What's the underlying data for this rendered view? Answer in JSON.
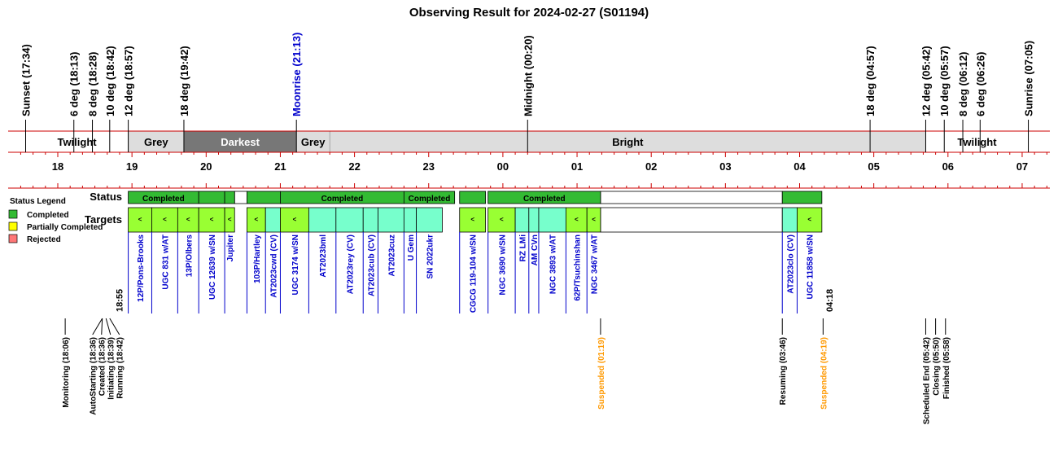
{
  "chart_data": {
    "type": "timeline",
    "title": "Observing Result for 2024-02-27 (S01194)",
    "colors": {
      "completed": "#33bb33",
      "partial": "#ffff00",
      "rejected": "#ff7777",
      "target_fill": "#99ff33",
      "target_fill_cv": "#77ffcc",
      "link": "#0000cc",
      "warning": "#ff9900",
      "rule": "#cc0000",
      "darkest": "#777777",
      "grey": "#dddddd",
      "bright": "#dddddd",
      "twilight": "#ffffff"
    },
    "sky_events": [
      {
        "label": "Sunset (17:34)",
        "time": "17:34",
        "color": "black"
      },
      {
        "label": "6 deg (18:13)",
        "time": "18:13",
        "color": "black"
      },
      {
        "label": "8 deg (18:28)",
        "time": "18:28",
        "color": "black"
      },
      {
        "label": "10 deg (18:42)",
        "time": "18:42",
        "color": "black"
      },
      {
        "label": "12 deg (18:57)",
        "time": "18:57",
        "color": "black"
      },
      {
        "label": "18 deg (19:42)",
        "time": "19:42",
        "color": "black"
      },
      {
        "label": "Moonrise (21:13)",
        "time": "21:13",
        "color": "blue"
      },
      {
        "label": "Midnight (00:20)",
        "time": "00:20",
        "color": "black"
      },
      {
        "label": "18 deg (04:57)",
        "time": "04:57",
        "color": "black"
      },
      {
        "label": "12 deg (05:42)",
        "time": "05:42",
        "color": "black"
      },
      {
        "label": "10 deg (05:57)",
        "time": "05:57",
        "color": "black"
      },
      {
        "label": "8 deg (06:12)",
        "time": "06:12",
        "color": "black"
      },
      {
        "label": "6 deg (06:26)",
        "time": "06:26",
        "color": "black"
      },
      {
        "label": "Sunrise (07:05)",
        "time": "07:05",
        "color": "black"
      }
    ],
    "sky_bands": [
      {
        "label": "Twilight",
        "start": "17:34",
        "end": "18:57",
        "kind": "twilight"
      },
      {
        "label": "Grey",
        "start": "18:57",
        "end": "19:42",
        "kind": "grey"
      },
      {
        "label": "Darkest",
        "start": "19:42",
        "end": "21:13",
        "kind": "darkest"
      },
      {
        "label": "Grey",
        "start": "21:13",
        "end": "21:40",
        "kind": "grey"
      },
      {
        "label": "Bright",
        "start": "21:40",
        "end": "05:42",
        "kind": "bright"
      },
      {
        "label": "Twilight",
        "start": "05:42",
        "end": "07:05",
        "kind": "twilight"
      }
    ],
    "hour_ticks": [
      "18",
      "19",
      "20",
      "21",
      "22",
      "23",
      "00",
      "01",
      "02",
      "03",
      "04",
      "05",
      "06",
      "07"
    ],
    "row_labels": {
      "status": "Status",
      "targets": "Targets"
    },
    "legend": {
      "title": "Status Legend",
      "items": [
        {
          "label": "Completed",
          "key": "completed"
        },
        {
          "label": "Partially Completed",
          "key": "partial"
        },
        {
          "label": "Rejected",
          "key": "rejected"
        }
      ]
    },
    "status_blocks": [
      {
        "start": "18:57",
        "end": "19:54",
        "label": "Completed"
      },
      {
        "start": "19:54",
        "end": "20:15",
        "label": ""
      },
      {
        "start": "20:15",
        "end": "20:23",
        "label": ""
      },
      {
        "start": "20:33",
        "end": "21:00",
        "label": ""
      },
      {
        "start": "21:00",
        "end": "22:40",
        "label": "Completed"
      },
      {
        "start": "22:40",
        "end": "23:21",
        "label": "Completed"
      },
      {
        "start": "23:25",
        "end": "23:46",
        "label": ""
      },
      {
        "start": "23:48",
        "end": "01:19",
        "label": "Completed"
      },
      {
        "start": "03:46",
        "end": "04:18",
        "label": ""
      }
    ],
    "status_gaps": [
      {
        "start": "20:23",
        "end": "20:33"
      },
      {
        "start": "01:19",
        "end": "03:46"
      }
    ],
    "targets": [
      {
        "name": "12P/Pons-Brooks",
        "start": "18:57",
        "end": "19:16",
        "kind": "green",
        "marker": "<"
      },
      {
        "name": "UGC 831 w/AT",
        "start": "19:16",
        "end": "19:37",
        "kind": "green",
        "marker": "<"
      },
      {
        "name": "13P/Olbers",
        "start": "19:37",
        "end": "19:54",
        "kind": "green",
        "marker": "<"
      },
      {
        "name": "UGC 12639 w/SN",
        "start": "19:54",
        "end": "20:15",
        "kind": "green",
        "marker": "<"
      },
      {
        "name": "Jupiter",
        "start": "20:15",
        "end": "20:23",
        "kind": "green",
        "marker": "<"
      },
      {
        "name": "103P/Hartley",
        "start": "20:33",
        "end": "20:48",
        "kind": "green",
        "marker": "<"
      },
      {
        "name": "AT2023cwd (CV)",
        "start": "20:48",
        "end": "21:00",
        "kind": "cv",
        "marker": ""
      },
      {
        "name": "UGC 3174 w/SN",
        "start": "21:00",
        "end": "21:23",
        "kind": "green",
        "marker": "<"
      },
      {
        "name": "AT2023bml",
        "start": "21:23",
        "end": "21:45",
        "kind": "cv",
        "marker": ""
      },
      {
        "name": "AT2023rey (CV)",
        "start": "21:45",
        "end": "22:07",
        "kind": "cv",
        "marker": ""
      },
      {
        "name": "AT2023cub (CV)",
        "start": "22:07",
        "end": "22:19",
        "kind": "cv",
        "marker": ""
      },
      {
        "name": "AT2023cuz",
        "start": "22:19",
        "end": "22:40",
        "kind": "cv",
        "marker": ""
      },
      {
        "name": "U Gem",
        "start": "22:40",
        "end": "22:50",
        "kind": "cv",
        "marker": ""
      },
      {
        "name": "SN 2022ukr",
        "start": "22:50",
        "end": "23:11",
        "kind": "cv",
        "marker": ""
      },
      {
        "name": "CGCG 119-104 w/SN",
        "start": "23:25",
        "end": "23:46",
        "kind": "green",
        "marker": "<"
      },
      {
        "name": "NGC 3690 w/SN",
        "start": "23:48",
        "end": "00:10",
        "kind": "green",
        "marker": "<"
      },
      {
        "name": "RZ LMi",
        "start": "00:10",
        "end": "00:21",
        "kind": "cv",
        "marker": ""
      },
      {
        "name": "AM CVn",
        "start": "00:21",
        "end": "00:29",
        "kind": "cv",
        "marker": ""
      },
      {
        "name": "NGC 3893 w/AT",
        "start": "00:29",
        "end": "00:51",
        "kind": "cv",
        "marker": ""
      },
      {
        "name": "62P/Tsuchinshan",
        "start": "00:51",
        "end": "01:08",
        "kind": "green",
        "marker": "<"
      },
      {
        "name": "NGC 3467 w/AT",
        "start": "01:08",
        "end": "01:19",
        "kind": "green",
        "marker": "<"
      },
      {
        "name": "AT2023clo (CV)",
        "start": "03:46",
        "end": "03:58",
        "kind": "cv",
        "marker": ""
      },
      {
        "name": "UGC 11858 w/SN",
        "start": "03:58",
        "end": "04:18",
        "kind": "green",
        "marker": "<"
      }
    ],
    "time_markers": [
      {
        "label": "18:55",
        "time": "18:55"
      },
      {
        "label": "04:18",
        "time": "04:18"
      }
    ],
    "system_events": [
      {
        "label": "Monitoring (18:06)",
        "time": "18:06",
        "color": "black"
      },
      {
        "label": "AutoStarting (18:36)",
        "time": "18:36",
        "color": "black"
      },
      {
        "label": "Created (18:36)",
        "time": "18:36",
        "color": "black"
      },
      {
        "label": "Initiating (18:39)",
        "time": "18:39",
        "color": "black"
      },
      {
        "label": "Running (18:42)",
        "time": "18:42",
        "color": "black"
      },
      {
        "label": "Suspended (01:19)",
        "time": "01:19",
        "color": "orange"
      },
      {
        "label": "Resuming (03:46)",
        "time": "03:46",
        "color": "black"
      },
      {
        "label": "Suspended (04:19)",
        "time": "04:19",
        "color": "orange"
      },
      {
        "label": "Scheduled End (05:42)",
        "time": "05:42",
        "color": "black"
      },
      {
        "label": "Closing (05:50)",
        "time": "05:50",
        "color": "black"
      },
      {
        "label": "Finished (05:58)",
        "time": "05:58",
        "color": "black"
      }
    ]
  }
}
